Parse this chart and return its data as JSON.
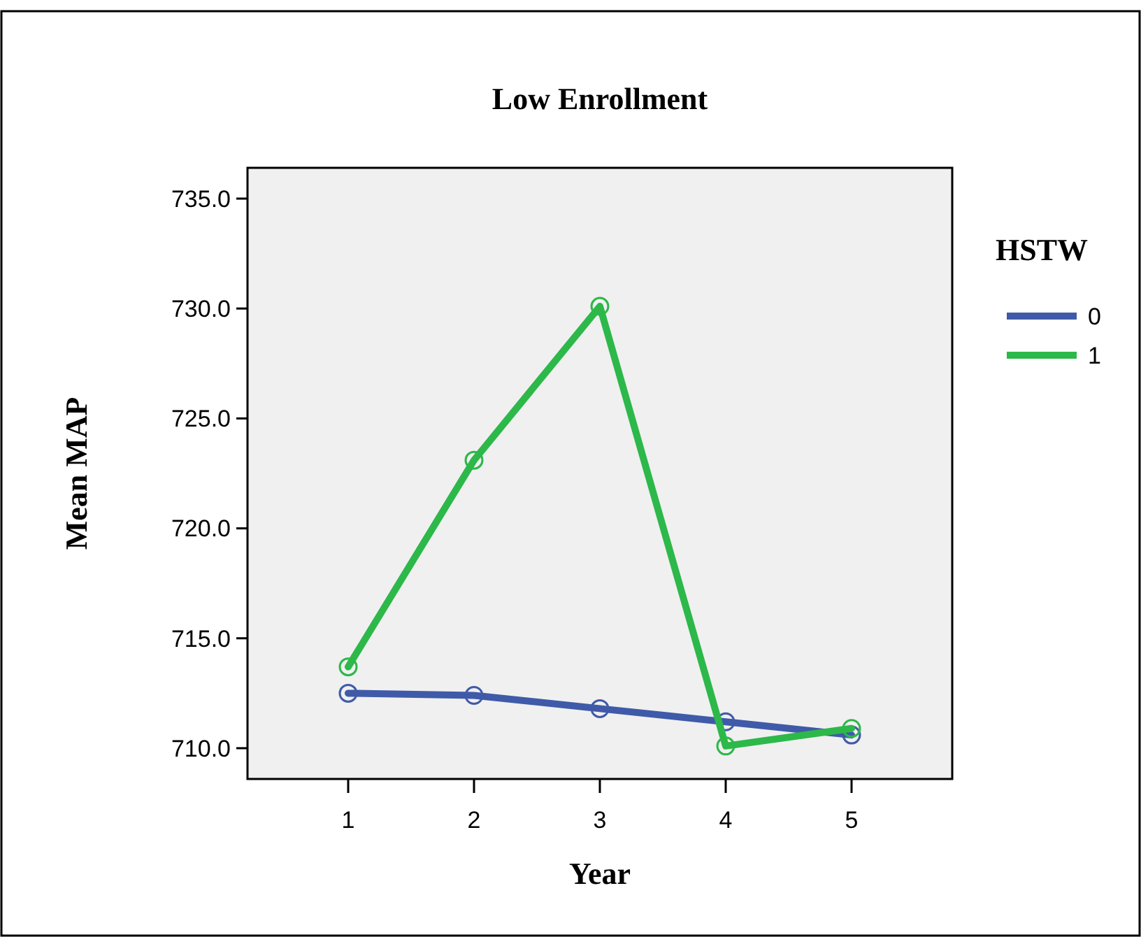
{
  "chart_data": {
    "type": "line",
    "title": "Low Enrollment",
    "xlabel": "Year",
    "ylabel": "Mean MAP",
    "legend_title": "HSTW",
    "x": [
      1,
      2,
      3,
      4,
      5
    ],
    "series": [
      {
        "name": "0",
        "color": "#3f5aa8",
        "values": [
          712.5,
          712.4,
          711.8,
          711.2,
          710.6
        ]
      },
      {
        "name": "1",
        "color": "#2db84a",
        "values": [
          713.7,
          723.1,
          730.1,
          710.1,
          710.9
        ]
      }
    ],
    "xlim": [
      0.2,
      5.8
    ],
    "xticks": [
      1,
      2,
      3,
      4,
      5
    ],
    "ylim": [
      708.6,
      736.4
    ],
    "yticks": [
      {
        "value": 710,
        "label": "710.0"
      },
      {
        "value": 715,
        "label": "715.0"
      },
      {
        "value": 720,
        "label": "720.0"
      },
      {
        "value": 725,
        "label": "725.0"
      },
      {
        "value": 730,
        "label": "730.0"
      },
      {
        "value": 735,
        "label": "735.0"
      }
    ],
    "grid": false,
    "legend": "top right",
    "marker": "circle",
    "line_style": "solid"
  }
}
